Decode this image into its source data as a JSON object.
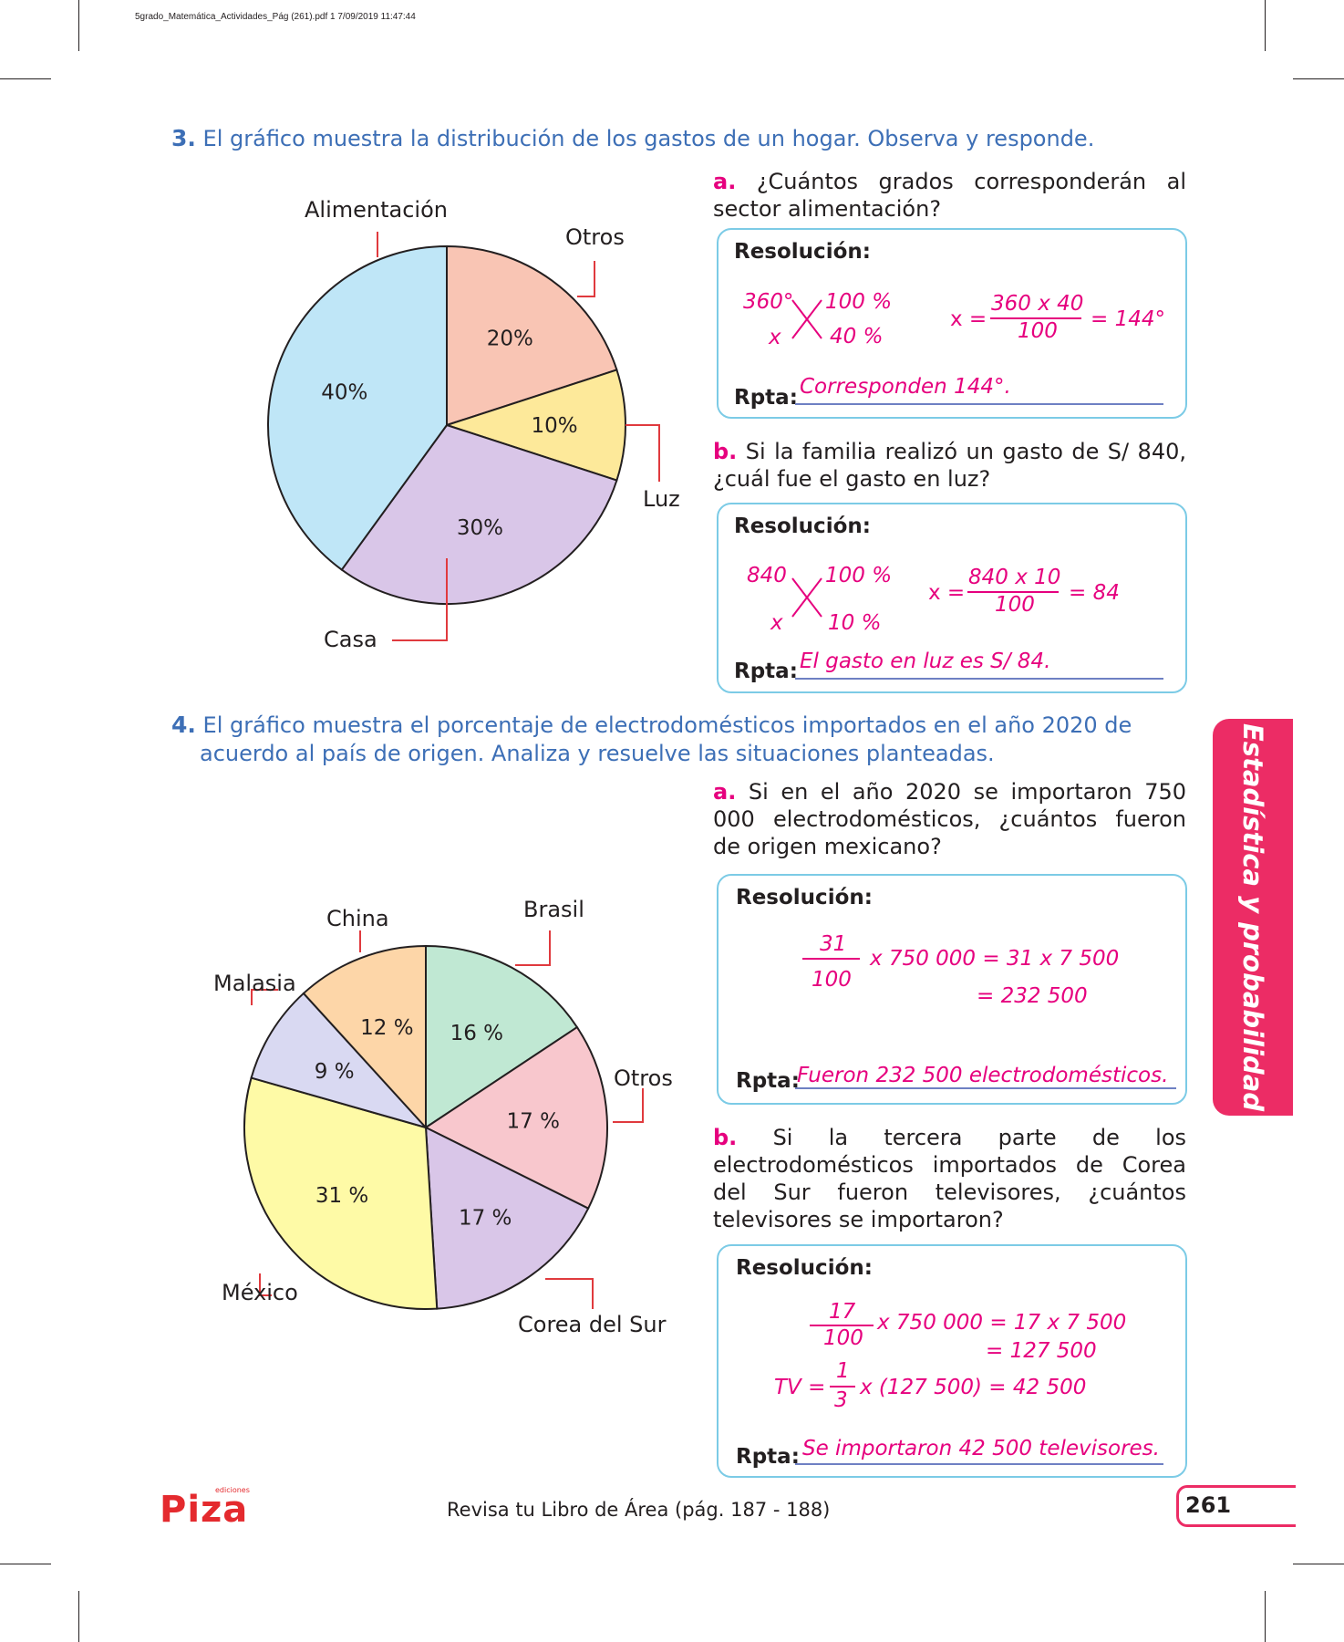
{
  "header": "5grado_Matemática_Actividades_Pág (261).pdf   1   7/09/2019   11:47:44",
  "q3": {
    "num": "3.",
    "title": "El gráfico muestra la distribución de los gastos de un hogar. Observa y responde.",
    "chart_data": {
      "type": "pie",
      "categories": [
        "Otros",
        "Luz",
        "Casa",
        "Alimentación"
      ],
      "values": [
        20,
        10,
        30,
        40
      ],
      "value_labels": [
        "20%",
        "10%",
        "30%",
        "40%"
      ],
      "colors": [
        "#f9c5b4",
        "#fde99a",
        "#d9c6e8",
        "#bfe6f7"
      ]
    },
    "a": {
      "letter": "a.",
      "question": "¿Cuántos grados corresponderán al sector alimentación?",
      "res_label": "Resolución:",
      "w1": "360°",
      "w2": "100 %",
      "w3": "x",
      "w4": "40 %",
      "eq_lhs": "x =",
      "eq_num": "360 x 40",
      "eq_den": "100",
      "eq_res": "= 144°",
      "rpta_label": "Rpta:",
      "answer": "Corresponden 144°."
    },
    "b": {
      "letter": "b.",
      "question": "Si la familia realizó un gasto de S/ 840, ¿cuál fue el gasto en luz?",
      "res_label": "Resolución:",
      "w1": "840",
      "w2": "100 %",
      "w3": "x",
      "w4": "10 %",
      "eq_lhs": "x =",
      "eq_num": "840 x 10",
      "eq_den": "100",
      "eq_res": "= 84",
      "rpta_label": "Rpta:",
      "answer": "El gasto en luz es S/ 84."
    }
  },
  "q4": {
    "num": "4.",
    "title_line1": "El gráfico muestra el porcentaje de electrodomésticos importados en el año 2020 de",
    "title_line2": "acuerdo al país de origen. Analiza y resuelve las situaciones planteadas.",
    "chart_data": {
      "type": "pie",
      "categories": [
        "Brasil",
        "Otros",
        "Corea del Sur",
        "México",
        "Malasia",
        "China"
      ],
      "values": [
        16,
        17,
        17,
        31,
        9,
        12
      ],
      "value_labels": [
        "16 %",
        "17 %",
        "17 %",
        "31 %",
        "9 %",
        "12 %"
      ],
      "colors": [
        "#c0e8d3",
        "#f8c7cd",
        "#d9c6e8",
        "#fefaa6",
        "#d9d9f2",
        "#fdd6a8"
      ]
    },
    "a": {
      "letter": "a.",
      "question": "Si en el año 2020 se importaron 750 000 electrodomésticos, ¿cuántos fueron de origen mexicano?",
      "res_label": "Resolución:",
      "frac_num": "31",
      "frac_den": "100",
      "line1": "x 750 000 = 31 x 7 500",
      "line2": "= 232 500",
      "rpta_label": "Rpta:",
      "answer": "Fueron 232 500 electrodomésticos."
    },
    "b": {
      "letter": "b.",
      "question": "Si la tercera parte de los electrodomésticos importados de Corea del Sur fueron televisores, ¿cuántos televisores se importaron?",
      "res_label": "Resolución:",
      "frac_num": "17",
      "frac_den": "100",
      "line1": "x 750 000 = 17 x 7 500",
      "line2": "= 127 500",
      "tv_lhs": "TV =",
      "tv_num": "1",
      "tv_den": "3",
      "tv_rest": "x (127 500) = 42 500",
      "rpta_label": "Rpta:",
      "answer": "Se importaron 42 500 televisores."
    }
  },
  "side_tab": "Estadística y probabilidad",
  "footer": "Revisa tu Libro de Área (pág. 187 - 188)",
  "page_number": "261",
  "logo": "Piza",
  "logo_small": "ediciones"
}
